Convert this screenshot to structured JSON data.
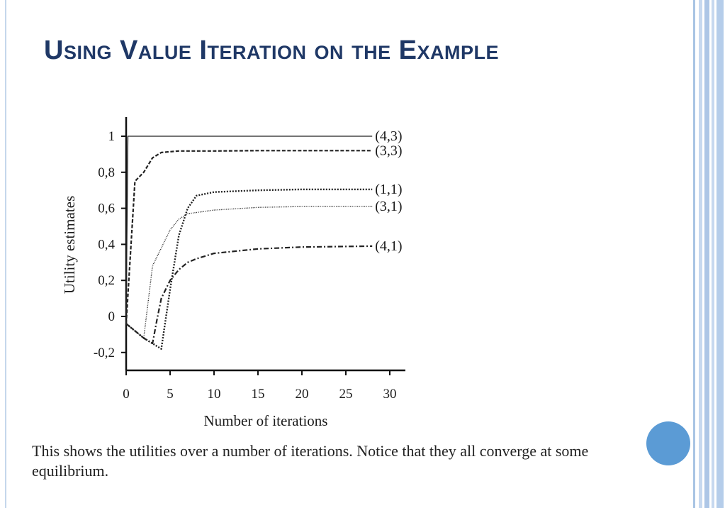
{
  "slide": {
    "title": "Using Value Iteration on the Example",
    "caption": "This shows the utilities over a number of iterations. Notice that they all converge at some equilibrium.",
    "colors": {
      "title": "#1f3866",
      "accent_circle": "#5b9bd5",
      "line": "#222222"
    }
  },
  "chart_data": {
    "type": "line",
    "xlabel": "Number of iterations",
    "ylabel": "Utility estimates",
    "xlim": [
      0,
      31
    ],
    "ylim": [
      -0.3,
      1.1
    ],
    "xticks": [
      "0",
      "5",
      "10",
      "15",
      "20",
      "25",
      "30"
    ],
    "xtick_values": [
      0,
      5,
      10,
      15,
      20,
      25,
      30
    ],
    "yticks": [
      "1",
      "0,8",
      "0,6",
      "0,4",
      "0,2",
      "0",
      "-0,2"
    ],
    "ytick_values": [
      1,
      0.8,
      0.6,
      0.4,
      0.2,
      0,
      -0.2
    ],
    "grid": false,
    "legend": "labels at right end of each line",
    "series": [
      {
        "name": "(4,3)",
        "style": "solid",
        "x": [
          0,
          0.2,
          28
        ],
        "y": [
          0,
          1,
          1
        ]
      },
      {
        "name": "(3,3)",
        "style": "dash",
        "x": [
          0,
          1,
          2,
          3,
          4,
          6,
          10,
          15,
          20,
          28
        ],
        "y": [
          -0.04,
          0.75,
          0.8,
          0.88,
          0.91,
          0.918,
          0.918,
          0.92,
          0.92,
          0.92
        ]
      },
      {
        "name": "(1,1)",
        "style": "dot-dense",
        "x": [
          0,
          2,
          4,
          5,
          6,
          7,
          8,
          10,
          15,
          20,
          28
        ],
        "y": [
          -0.04,
          -0.12,
          -0.18,
          0.15,
          0.45,
          0.6,
          0.67,
          0.69,
          0.7,
          0.705,
          0.705
        ]
      },
      {
        "name": "(3,1)",
        "style": "dot-fine",
        "x": [
          0,
          1,
          2,
          3,
          4,
          5,
          6,
          7,
          10,
          15,
          20,
          28
        ],
        "y": [
          -0.04,
          -0.08,
          -0.12,
          0.28,
          0.38,
          0.48,
          0.54,
          0.57,
          0.59,
          0.605,
          0.61,
          0.61
        ]
      },
      {
        "name": "(4,1)",
        "style": "dashdot",
        "x": [
          0,
          1,
          2,
          3,
          3.5,
          4,
          5,
          6,
          7,
          8,
          10,
          15,
          20,
          28
        ],
        "y": [
          -0.04,
          -0.08,
          -0.12,
          -0.15,
          -0.02,
          0.1,
          0.2,
          0.26,
          0.3,
          0.32,
          0.35,
          0.375,
          0.385,
          0.39
        ]
      }
    ]
  }
}
